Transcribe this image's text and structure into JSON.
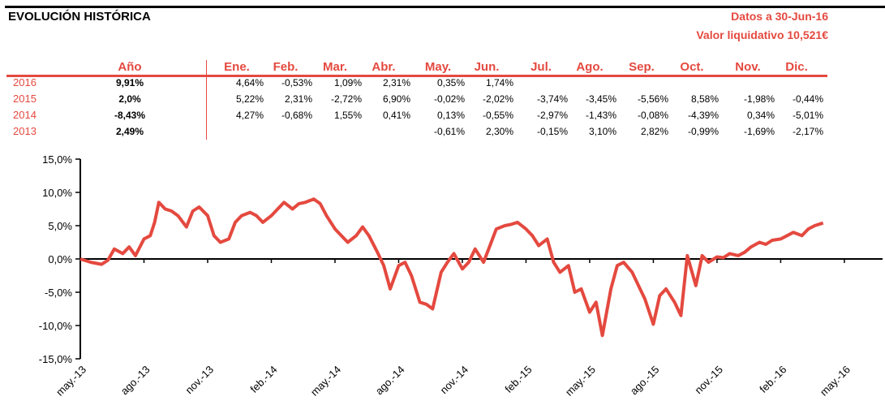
{
  "header": {
    "title": "EVOLUCIÓN HISTÓRICA",
    "date_info": "Datos a 30-Jun-16",
    "nav_info": "Valor liquidativo 10,521€"
  },
  "table": {
    "year_header": "Año",
    "months": [
      "Ene.",
      "Feb.",
      "Mar.",
      "Abr.",
      "May.",
      "Jun.",
      "Jul.",
      "Ago.",
      "Sep.",
      "Oct.",
      "Nov.",
      "Dic."
    ],
    "rows": [
      {
        "year": "2016",
        "annual": "9,91%",
        "values": [
          "4,64%",
          "-0,53%",
          "1,09%",
          "2,31%",
          "0,35%",
          "1,74%",
          "",
          "",
          "",
          "",
          "",
          ""
        ]
      },
      {
        "year": "2015",
        "annual": "2,0%",
        "values": [
          "5,22%",
          "2,31%",
          "-2,72%",
          "6,90%",
          "-0,02%",
          "-2,02%",
          "-3,74%",
          "-3,45%",
          "-5,56%",
          "8,58%",
          "-1,98%",
          "-0,44%"
        ]
      },
      {
        "year": "2014",
        "annual": "-8,43%",
        "values": [
          "4,27%",
          "-0,68%",
          "1,55%",
          "0,41%",
          "0,13%",
          "-0,55%",
          "-2,97%",
          "-1,43%",
          "-0,08%",
          "-4,39%",
          "0,34%",
          "-5,01%"
        ]
      },
      {
        "year": "2013",
        "annual": "2,49%",
        "values": [
          "",
          "",
          "",
          "",
          "-0,61%",
          "2,30%",
          "-0,15%",
          "3,10%",
          "2,82%",
          "-0,99%",
          "-1,69%",
          "-2,17%"
        ]
      }
    ]
  },
  "chart_data": {
    "type": "line",
    "y_ticks": [
      "15,0%",
      "10,0%",
      "5,0%",
      "0,0%",
      "-5,0%",
      "-10,0%",
      "-15,0%"
    ],
    "x_ticks": [
      "may.-13",
      "ago.-13",
      "nov.-13",
      "feb.-14",
      "may.-14",
      "ago.-14",
      "nov.-14",
      "feb.-15",
      "may.-15",
      "ago.-15",
      "nov.-15",
      "feb.-16",
      "may.-16"
    ],
    "ylim": [
      -15,
      15
    ],
    "line_color": "#e4493f",
    "series": [
      {
        "values": [
          [
            0,
            0
          ],
          [
            0.5,
            -0.5
          ],
          [
            1,
            -0.8
          ],
          [
            1.3,
            -0.2
          ],
          [
            1.6,
            1.5
          ],
          [
            2,
            0.8
          ],
          [
            2.3,
            1.8
          ],
          [
            2.6,
            0.5
          ],
          [
            3,
            3.0
          ],
          [
            3.3,
            3.5
          ],
          [
            3.5,
            5.5
          ],
          [
            3.7,
            8.5
          ],
          [
            4,
            7.5
          ],
          [
            4.3,
            7.2
          ],
          [
            4.6,
            6.5
          ],
          [
            5,
            4.8
          ],
          [
            5.3,
            7.2
          ],
          [
            5.6,
            7.8
          ],
          [
            6,
            6.5
          ],
          [
            6.3,
            3.5
          ],
          [
            6.6,
            2.5
          ],
          [
            7,
            3.0
          ],
          [
            7.3,
            5.5
          ],
          [
            7.6,
            6.5
          ],
          [
            8,
            7.0
          ],
          [
            8.3,
            6.5
          ],
          [
            8.6,
            5.5
          ],
          [
            9,
            6.5
          ],
          [
            9.3,
            7.5
          ],
          [
            9.6,
            8.5
          ],
          [
            10,
            7.5
          ],
          [
            10.3,
            8.3
          ],
          [
            10.6,
            8.5
          ],
          [
            11,
            9.0
          ],
          [
            11.3,
            8.3
          ],
          [
            11.6,
            6.5
          ],
          [
            12,
            4.5
          ],
          [
            12.3,
            3.5
          ],
          [
            12.6,
            2.5
          ],
          [
            13,
            3.5
          ],
          [
            13.3,
            4.8
          ],
          [
            13.6,
            3.5
          ],
          [
            14,
            1.0
          ],
          [
            14.3,
            -1.0
          ],
          [
            14.6,
            -4.5
          ],
          [
            15,
            -1.0
          ],
          [
            15.3,
            -0.5
          ],
          [
            15.6,
            -2.5
          ],
          [
            16,
            -6.5
          ],
          [
            16.3,
            -6.8
          ],
          [
            16.6,
            -7.5
          ],
          [
            17,
            -2.0
          ],
          [
            17.3,
            -0.5
          ],
          [
            17.6,
            0.8
          ],
          [
            18,
            -1.5
          ],
          [
            18.3,
            -0.5
          ],
          [
            18.6,
            1.5
          ],
          [
            19,
            -0.5
          ],
          [
            19.3,
            2.0
          ],
          [
            19.6,
            4.5
          ],
          [
            20,
            5.0
          ],
          [
            20.3,
            5.2
          ],
          [
            20.6,
            5.5
          ],
          [
            21,
            4.5
          ],
          [
            21.3,
            3.5
          ],
          [
            21.6,
            2.0
          ],
          [
            22,
            3.0
          ],
          [
            22.3,
            -0.5
          ],
          [
            22.6,
            -2.0
          ],
          [
            23,
            -1.0
          ],
          [
            23.3,
            -5.0
          ],
          [
            23.6,
            -4.5
          ],
          [
            24,
            -8.0
          ],
          [
            24.3,
            -6.5
          ],
          [
            24.6,
            -11.5
          ],
          [
            25,
            -4.5
          ],
          [
            25.3,
            -1.0
          ],
          [
            25.6,
            -0.5
          ],
          [
            26,
            -2.0
          ],
          [
            26.3,
            -4.0
          ],
          [
            26.6,
            -6.0
          ],
          [
            27,
            -9.8
          ],
          [
            27.3,
            -5.5
          ],
          [
            27.6,
            -4.5
          ],
          [
            28,
            -6.5
          ],
          [
            28.3,
            -8.5
          ],
          [
            28.6,
            0.5
          ],
          [
            29,
            -4.0
          ],
          [
            29.3,
            0.5
          ],
          [
            29.6,
            -0.5
          ],
          [
            30,
            0.3
          ],
          [
            30.3,
            0.2
          ],
          [
            30.6,
            0.8
          ],
          [
            31,
            0.5
          ],
          [
            31.3,
            1.0
          ],
          [
            31.6,
            1.8
          ],
          [
            32,
            2.5
          ],
          [
            32.3,
            2.2
          ],
          [
            32.6,
            2.8
          ],
          [
            33,
            3.0
          ],
          [
            33.3,
            3.5
          ],
          [
            33.6,
            4.0
          ],
          [
            34,
            3.5
          ],
          [
            34.3,
            4.5
          ],
          [
            34.6,
            5.0
          ],
          [
            35,
            5.4
          ]
        ]
      }
    ]
  }
}
